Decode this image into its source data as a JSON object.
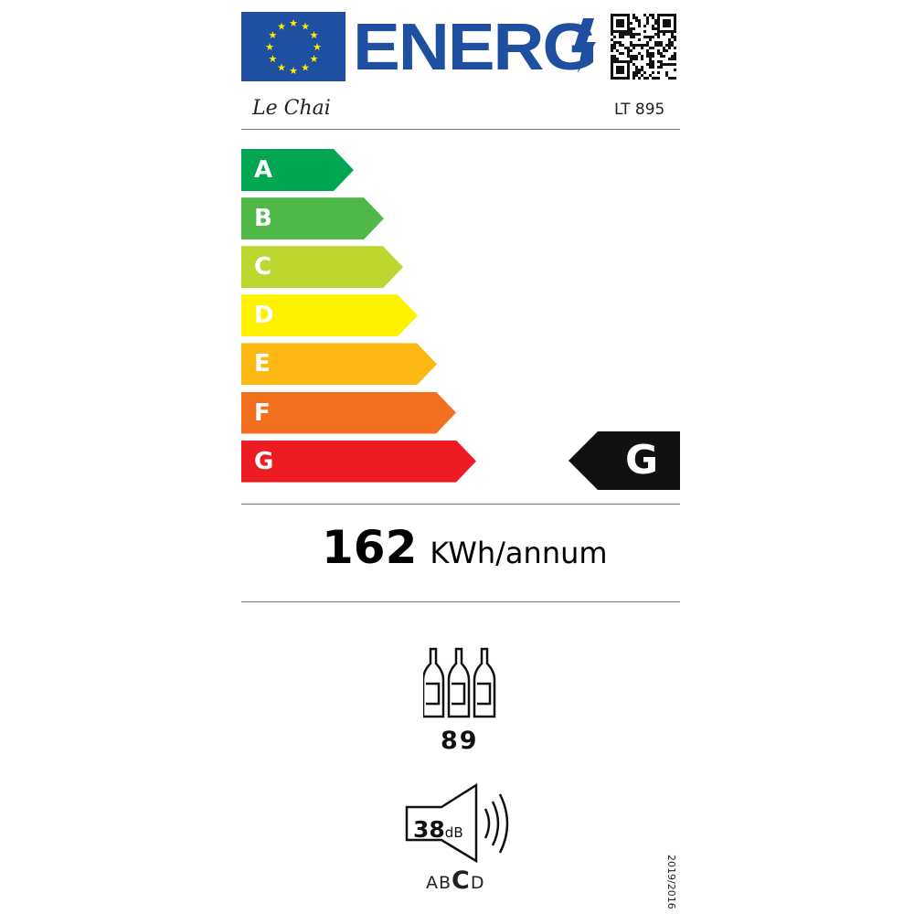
{
  "header": {
    "title": "ENERG",
    "brand": "Le Chai",
    "model": "LT 895",
    "icons": [
      "eu-flag-icon",
      "lightning-icon",
      "qr-code-icon"
    ]
  },
  "scale": {
    "classes": [
      {
        "label": "A",
        "color": "#00a651"
      },
      {
        "label": "B",
        "color": "#50b848"
      },
      {
        "label": "C",
        "color": "#bed630"
      },
      {
        "label": "D",
        "color": "#fff200"
      },
      {
        "label": "E",
        "color": "#fdb913"
      },
      {
        "label": "F",
        "color": "#f37021"
      },
      {
        "label": "G",
        "color": "#ed1c24"
      }
    ],
    "rating": "G"
  },
  "consumption": {
    "value": "162",
    "unit": "KWh/annum"
  },
  "capacity": {
    "icon": "wine-bottles-icon",
    "value": "89"
  },
  "noise": {
    "icon": "speaker-icon",
    "value": "38",
    "unit": "dB",
    "classes": [
      "A",
      "B",
      "C",
      "D"
    ],
    "selected": "C"
  },
  "regulation": "2019/2016"
}
